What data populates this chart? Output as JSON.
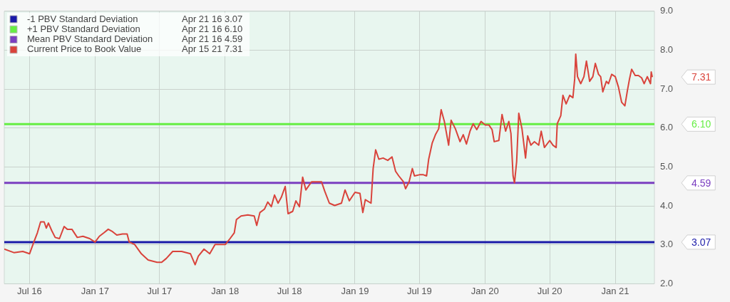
{
  "chart_data": {
    "type": "line",
    "xlim": [
      "2016-04-21",
      "2021-04-21"
    ],
    "xticks": [
      {
        "value": "2016-07-01",
        "label": "Jul 16"
      },
      {
        "value": "2017-01-01",
        "label": "Jan 17"
      },
      {
        "value": "2017-07-01",
        "label": "Jul 17"
      },
      {
        "value": "2018-01-01",
        "label": "Jan 18"
      },
      {
        "value": "2018-07-01",
        "label": "Jul 18"
      },
      {
        "value": "2019-01-01",
        "label": "Jan 19"
      },
      {
        "value": "2019-07-01",
        "label": "Jul 19"
      },
      {
        "value": "2020-01-01",
        "label": "Jan 20"
      },
      {
        "value": "2020-07-01",
        "label": "Jul 20"
      },
      {
        "value": "2021-01-01",
        "label": "Jan 21"
      }
    ],
    "ylim": [
      2,
      9
    ],
    "yticks": [
      {
        "value": 2,
        "label": "2.0"
      },
      {
        "value": 3,
        "label": "3.0"
      },
      {
        "value": 4,
        "label": "4.0"
      },
      {
        "value": 5,
        "label": "5.0"
      },
      {
        "value": 6,
        "label": "6.0"
      },
      {
        "value": 7,
        "label": "7.0"
      },
      {
        "value": 8,
        "label": "8.0"
      },
      {
        "value": 9,
        "label": "9.0"
      }
    ],
    "grid": true,
    "legend": "top left",
    "marker": "none",
    "line_style": "solid",
    "series": [
      {
        "name": "-1 PBV Standard Deviation",
        "color": "#1a1aa8",
        "x": [
          "2016-04-21",
          "2021-04-21"
        ],
        "values": [
          3.07,
          3.07
        ]
      },
      {
        "name": "+1 PBV Standard Deviation",
        "color": "#66ee44",
        "x": [
          "2016-04-21",
          "2021-04-21"
        ],
        "values": [
          6.1,
          6.1
        ]
      },
      {
        "name": "Mean PBV Standard Deviation",
        "color": "#7b3fc0",
        "x": [
          "2016-04-21",
          "2021-04-21"
        ],
        "values": [
          4.59,
          4.59
        ]
      },
      {
        "name": "Current Price to Book Value",
        "color": "#d9433b",
        "x": [
          "2016-04-21",
          "2016-05-18",
          "2016-06-12",
          "2016-07-01",
          "2016-07-13",
          "2016-07-23",
          "2016-08-01",
          "2016-08-11",
          "2016-08-17",
          "2016-08-23",
          "2016-09-01",
          "2016-09-11",
          "2016-09-23",
          "2016-10-06",
          "2016-10-15",
          "2016-10-28",
          "2016-11-12",
          "2016-11-28",
          "2016-12-17",
          "2017-01-01",
          "2017-01-13",
          "2017-01-26",
          "2017-02-07",
          "2017-02-19",
          "2017-03-03",
          "2017-03-19",
          "2017-04-01",
          "2017-04-07",
          "2017-04-22",
          "2017-05-11",
          "2017-05-30",
          "2017-06-24",
          "2017-07-07",
          "2017-07-20",
          "2017-08-07",
          "2017-09-01",
          "2017-09-26",
          "2017-10-09",
          "2017-10-18",
          "2017-11-03",
          "2017-11-19",
          "2017-12-04",
          "2017-12-20",
          "2018-01-02",
          "2018-01-15",
          "2018-01-27",
          "2018-02-02",
          "2018-02-15",
          "2018-03-06",
          "2018-03-24",
          "2018-03-31",
          "2018-04-09",
          "2018-04-22",
          "2018-05-01",
          "2018-05-11",
          "2018-05-20",
          "2018-05-30",
          "2018-06-08",
          "2018-06-19",
          "2018-06-27",
          "2018-07-10",
          "2018-07-19",
          "2018-07-29",
          "2018-08-07",
          "2018-08-16",
          "2018-09-01",
          "2018-09-16",
          "2018-09-29",
          "2018-10-08",
          "2018-10-21",
          "2018-11-05",
          "2018-11-24",
          "2018-12-04",
          "2018-12-16",
          "2019-01-01",
          "2019-01-15",
          "2019-01-23",
          "2019-01-30",
          "2019-02-15",
          "2019-02-21",
          "2019-02-28",
          "2019-03-09",
          "2019-03-21",
          "2019-04-03",
          "2019-04-15",
          "2019-04-25",
          "2019-05-04",
          "2019-05-17",
          "2019-05-23",
          "2019-06-02",
          "2019-06-11",
          "2019-06-17",
          "2019-07-01",
          "2019-07-12",
          "2019-07-21",
          "2019-07-27",
          "2019-08-06",
          "2019-08-15",
          "2019-08-24",
          "2019-08-31",
          "2019-09-09",
          "2019-09-21",
          "2019-09-28",
          "2019-10-10",
          "2019-10-23",
          "2019-11-01",
          "2019-11-10",
          "2019-11-20",
          "2019-11-29",
          "2019-12-09",
          "2019-12-21",
          "2020-01-02",
          "2020-01-12",
          "2020-01-21",
          "2020-01-27",
          "2020-02-09",
          "2020-02-18",
          "2020-02-28",
          "2020-03-08",
          "2020-03-14",
          "2020-03-20",
          "2020-03-24",
          "2020-03-30",
          "2020-04-05",
          "2020-04-14",
          "2020-04-24",
          "2020-04-30",
          "2020-05-09",
          "2020-05-19",
          "2020-05-31",
          "2020-06-07",
          "2020-06-16",
          "2020-07-01",
          "2020-07-10",
          "2020-07-19",
          "2020-07-22",
          "2020-08-01",
          "2020-08-07",
          "2020-08-16",
          "2020-08-26",
          "2020-09-04",
          "2020-09-09",
          "2020-09-12",
          "2020-09-17",
          "2020-09-26",
          "2020-10-05",
          "2020-10-12",
          "2020-10-18",
          "2020-10-21",
          "2020-10-30",
          "2020-11-06",
          "2020-11-15",
          "2020-11-21",
          "2020-11-27",
          "2020-12-07",
          "2020-12-13",
          "2020-12-22",
          "2021-01-01",
          "2021-01-10",
          "2021-01-19",
          "2021-01-28",
          "2021-02-04",
          "2021-02-10",
          "2021-02-16",
          "2021-02-26",
          "2021-03-07",
          "2021-03-16",
          "2021-03-23",
          "2021-04-01",
          "2021-04-10",
          "2021-04-12",
          "2021-04-15"
        ],
        "values": [
          2.89,
          2.8,
          2.83,
          2.77,
          3.07,
          3.31,
          3.59,
          3.59,
          3.43,
          3.56,
          3.37,
          3.19,
          3.16,
          3.47,
          3.4,
          3.4,
          3.19,
          3.22,
          3.16,
          3.07,
          3.22,
          3.31,
          3.4,
          3.34,
          3.25,
          3.28,
          3.28,
          3.07,
          3.01,
          2.77,
          2.61,
          2.55,
          2.55,
          2.65,
          2.83,
          2.83,
          2.77,
          2.49,
          2.71,
          2.89,
          2.77,
          3.01,
          3.01,
          3.01,
          3.16,
          3.31,
          3.65,
          3.74,
          3.77,
          3.74,
          3.5,
          3.83,
          3.92,
          4.1,
          3.98,
          4.28,
          4.07,
          4.22,
          4.5,
          3.8,
          3.86,
          4.13,
          3.98,
          4.74,
          4.41,
          4.62,
          4.62,
          4.62,
          4.38,
          4.07,
          4.01,
          4.07,
          4.41,
          4.13,
          4.35,
          4.32,
          3.83,
          4.16,
          4.07,
          4.96,
          5.44,
          5.2,
          5.23,
          5.17,
          5.26,
          4.89,
          4.77,
          4.62,
          4.44,
          4.62,
          4.96,
          4.77,
          4.8,
          4.8,
          4.77,
          5.2,
          5.62,
          5.83,
          5.98,
          6.47,
          6.17,
          5.56,
          6.2,
          5.98,
          5.65,
          5.83,
          5.59,
          5.92,
          6.11,
          5.96,
          6.17,
          6.08,
          6.08,
          5.96,
          5.65,
          5.68,
          6.35,
          5.92,
          6.17,
          5.86,
          4.77,
          4.59,
          5.14,
          6.38,
          5.98,
          5.23,
          5.8,
          5.56,
          5.65,
          5.56,
          5.92,
          5.5,
          5.68,
          5.56,
          5.5,
          6.11,
          6.32,
          6.84,
          6.62,
          6.84,
          6.78,
          7.26,
          7.9,
          7.32,
          7.14,
          7.32,
          7.72,
          7.38,
          7.2,
          7.32,
          7.66,
          7.38,
          7.32,
          6.93,
          7.2,
          7.14,
          7.38,
          7.32,
          7.05,
          6.66,
          6.57,
          6.96,
          7.26,
          7.51,
          7.35,
          7.35,
          7.29,
          7.14,
          7.32,
          7.14,
          7.44,
          7.31
        ]
      }
    ],
    "annotations": [
      "3.07",
      "6.10",
      "4.59",
      "7.31",
      "Apr 21 16",
      "3.07",
      "Apr 21 16",
      "6.10",
      "Apr 21 16",
      "4.59",
      "Apr 15 21",
      "7.31"
    ]
  }
}
